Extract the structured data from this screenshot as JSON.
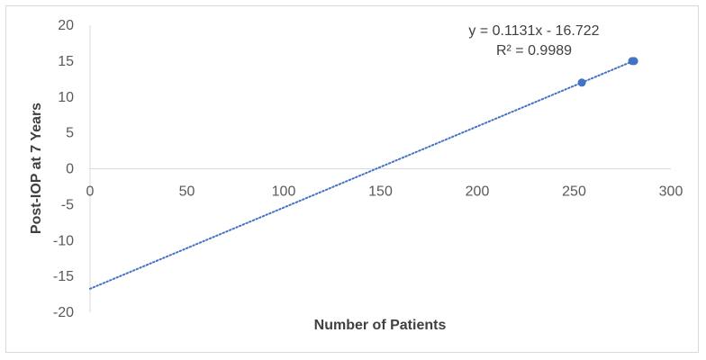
{
  "chart_data": {
    "type": "scatter",
    "title": "",
    "xlabel": "Number of Patients",
    "ylabel": "Post-IOP at 7 Years",
    "xlim": [
      0,
      300
    ],
    "ylim": [
      -20,
      20
    ],
    "x_ticks": [
      0,
      50,
      100,
      150,
      200,
      250,
      300
    ],
    "y_ticks": [
      20,
      15,
      10,
      5,
      0,
      -5,
      -10,
      -15,
      -20
    ],
    "x_tick_labels": [
      "0",
      "50",
      "100",
      "150",
      "200",
      "250",
      "300"
    ],
    "y_tick_labels": [
      "20",
      "15",
      "10",
      "5",
      "0",
      "-5",
      "-10",
      "-15",
      "-20"
    ],
    "grid": false,
    "legend": "none",
    "series": [
      {
        "points": [
          {
            "x": 254,
            "y": 12
          },
          {
            "x": 280,
            "y": 15
          },
          {
            "x": 281,
            "y": 15
          }
        ],
        "color": "#4472c4"
      }
    ],
    "trendline": {
      "type": "linear",
      "style": "dotted",
      "color": "#4472c4",
      "slope": 0.1131,
      "intercept": -16.722,
      "x_range": [
        0,
        281
      ],
      "equation_label": "y = 0.1131x - 16.722",
      "r2_label": "R² = 0.9989"
    },
    "axis_color": "#d9d9d9"
  }
}
